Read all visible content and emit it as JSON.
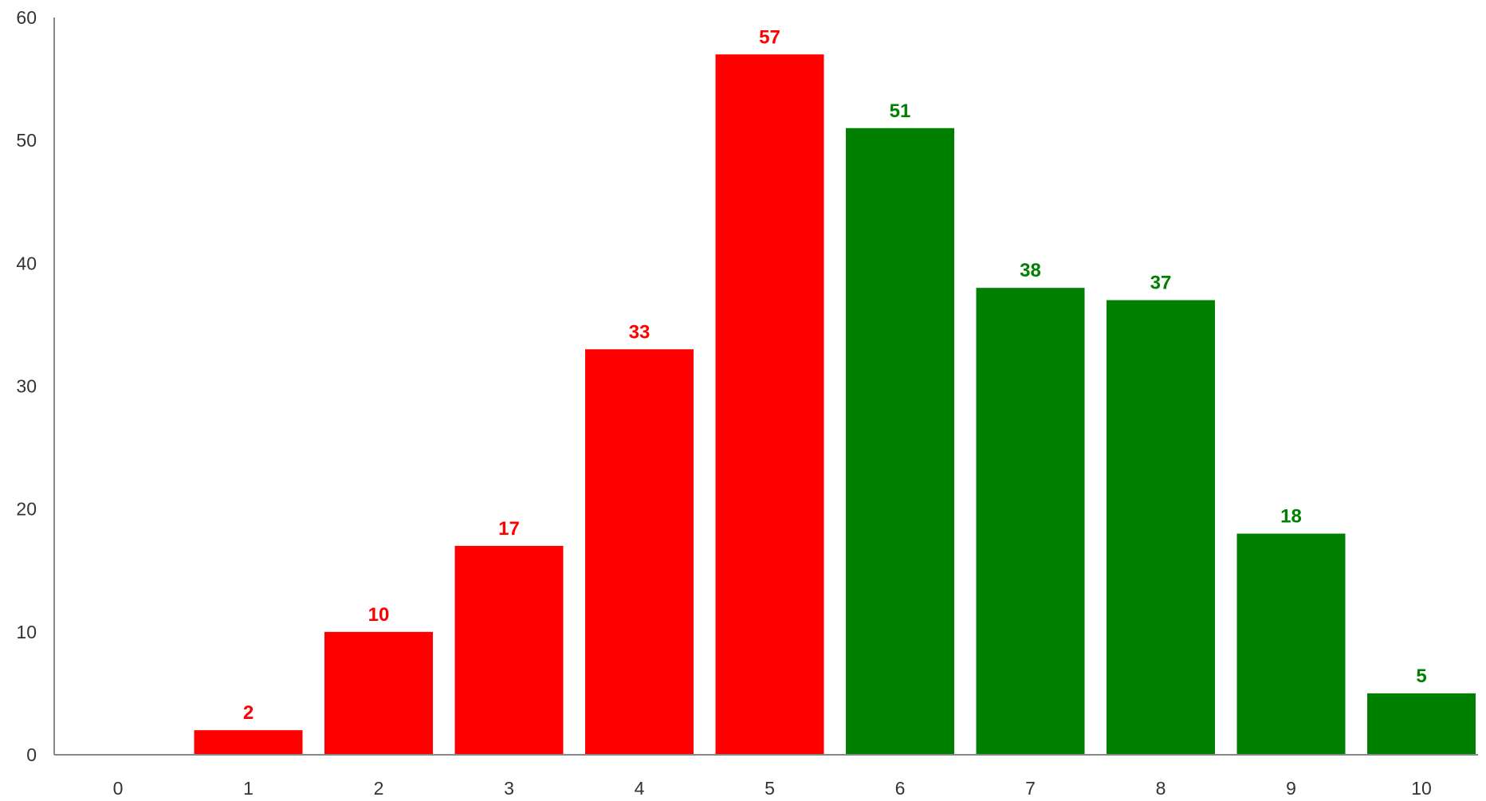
{
  "chart_data": {
    "type": "bar",
    "title": "",
    "xlabel": "",
    "ylabel": "",
    "categories": [
      "0",
      "1",
      "2",
      "3",
      "4",
      "5",
      "6",
      "7",
      "8",
      "9",
      "10"
    ],
    "values": [
      0,
      2,
      10,
      17,
      33,
      57,
      51,
      38,
      37,
      18,
      5
    ],
    "bar_colors": [
      "#ff0000",
      "#ff0000",
      "#ff0000",
      "#ff0000",
      "#ff0000",
      "#ff0000",
      "#008000",
      "#008000",
      "#008000",
      "#008000",
      "#008000"
    ],
    "data_labels": [
      "",
      "2",
      "10",
      "17",
      "33",
      "57",
      "51",
      "38",
      "37",
      "18",
      "5"
    ],
    "ylim": [
      0,
      60
    ],
    "y_ticks": [
      0,
      10,
      20,
      30,
      40,
      50,
      60
    ],
    "grid": false,
    "legend": "none"
  }
}
